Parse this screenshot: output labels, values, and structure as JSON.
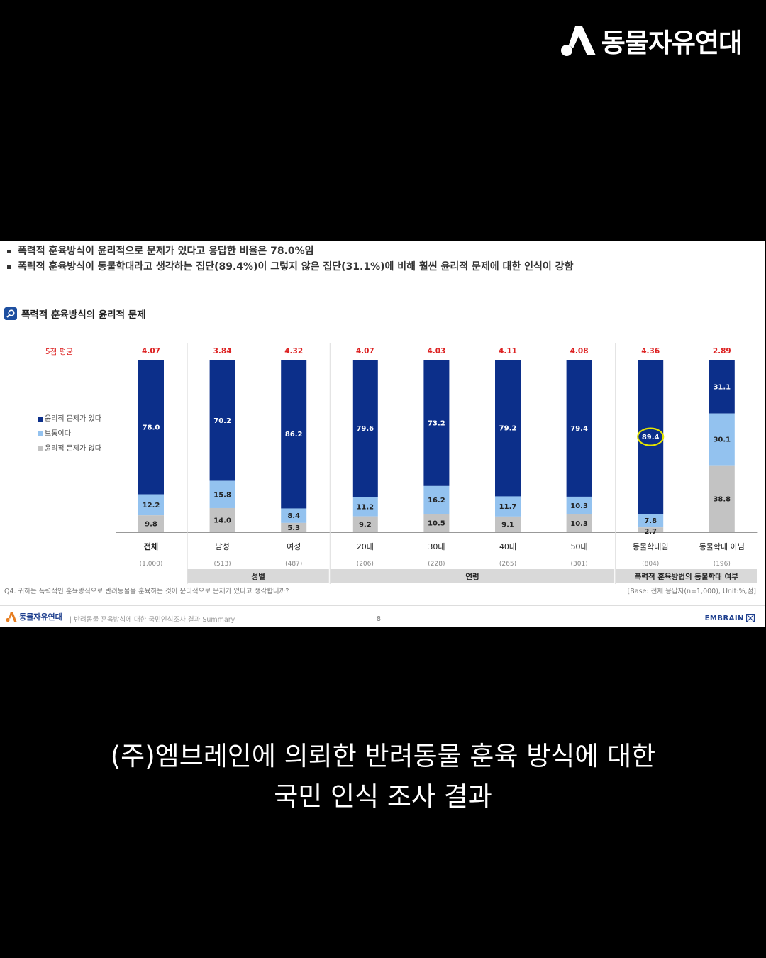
{
  "brand": {
    "name": "동물자유연대",
    "logo_icon": "triangle-person-logo-icon"
  },
  "slide": {
    "bullets": [
      "폭력적 훈육방식이 윤리적으로 문제가 있다고 응답한 비율은 78.0%임",
      "폭력적 훈육방식이 동물학대라고 생각하는 집단(89.4%)이 그렇지 않은 집단(31.1%)에 비해 훨씬 윤리적 문제에 대한 인식이 강함"
    ],
    "section_title": "폭력적 훈육방식의 윤리적 문제",
    "section_icon": "magnifier-icon",
    "avg_label": "5점 평균",
    "question": "Q4. 귀하는 폭력적인 훈육방식으로 반려동물을 훈육하는 것이 윤리적으로 문제가 있다고 생각합니까?",
    "base_note": "[Base: 전체 응답자(n=1,000), Unit:%,점]",
    "footer": {
      "logo": "동물자유연대",
      "subtitle": "|  반려동물 훈육방식에 대한 국민인식조사 결과 Summary",
      "page": "8",
      "company": "EMBRAIN"
    }
  },
  "chart_data": {
    "type": "bar",
    "stacked": true,
    "categories": [
      "전체",
      "남성",
      "여성",
      "20대",
      "30대",
      "40대",
      "50대",
      "동물학대임",
      "동물학대 아님"
    ],
    "counts": [
      "(1,000)",
      "(513)",
      "(487)",
      "(206)",
      "(228)",
      "(265)",
      "(301)",
      "(804)",
      "(196)"
    ],
    "averages": [
      "4.07",
      "3.84",
      "4.32",
      "4.07",
      "4.03",
      "4.11",
      "4.08",
      "4.36",
      "2.89"
    ],
    "series": [
      {
        "name": "윤리적 문제가 있다",
        "color": "#0c2f8a",
        "values": [
          78.0,
          70.2,
          86.2,
          79.6,
          73.2,
          79.2,
          79.4,
          89.4,
          31.1
        ]
      },
      {
        "name": "보통이다",
        "color": "#93c2ef",
        "values": [
          12.2,
          15.8,
          8.4,
          11.2,
          16.2,
          11.7,
          10.3,
          7.8,
          30.1
        ]
      },
      {
        "name": "윤리적 문제가 없다",
        "color": "#c3c3c3",
        "values": [
          9.8,
          14.0,
          5.3,
          9.2,
          10.5,
          9.1,
          10.3,
          2.7,
          38.8
        ]
      }
    ],
    "groups": [
      {
        "label": "성별",
        "from": 1,
        "to": 2
      },
      {
        "label": "연령",
        "from": 3,
        "to": 6
      },
      {
        "label": "폭력적 훈육방법의 동물학대 여부",
        "from": 7,
        "to": 8
      }
    ],
    "highlight": {
      "category": "동물학대임",
      "series": "윤리적 문제가 있다",
      "color": "#e5e500"
    },
    "ylim": [
      0,
      100
    ]
  },
  "caption": {
    "line1": "(주)엠브레인에 의뢰한 반려동물 훈육 방식에 대한",
    "line2": "국민 인식 조사 결과"
  }
}
